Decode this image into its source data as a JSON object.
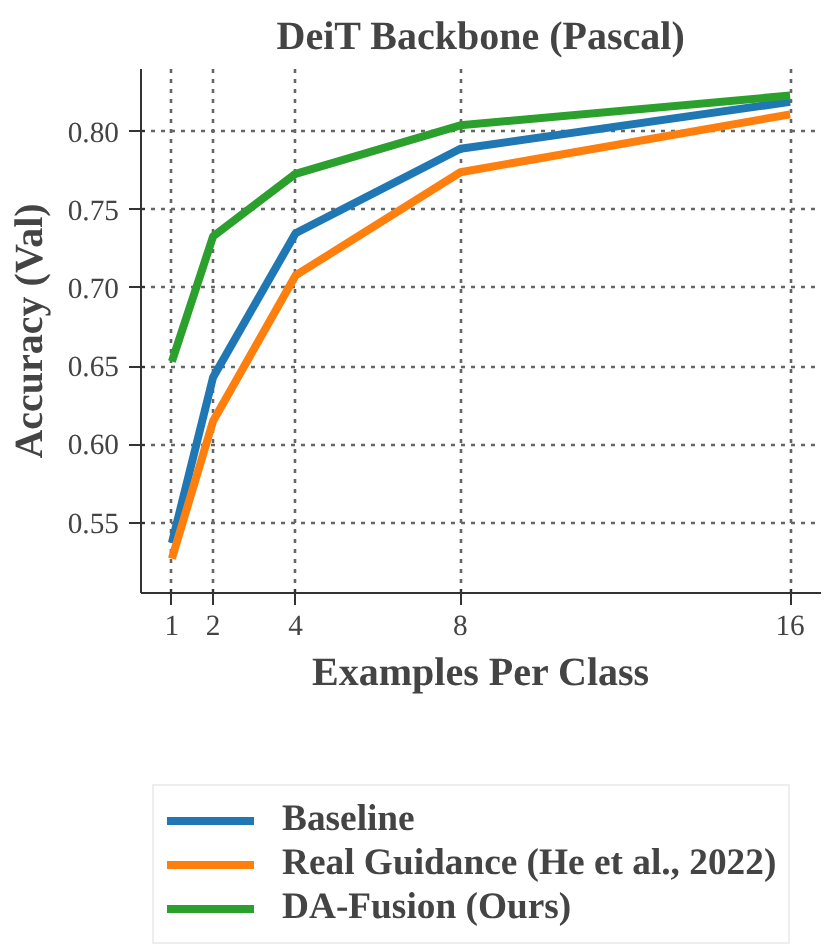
{
  "chart_data": {
    "type": "line",
    "title": "DeiT Backbone (Pascal)",
    "xlabel": "Examples Per Class",
    "ylabel": "Accuracy (Val)",
    "x": [
      1,
      2,
      4,
      8,
      16
    ],
    "series": [
      {
        "name": "Baseline",
        "color": "#1f77b4",
        "values": [
          0.537,
          0.643,
          0.735,
          0.789,
          0.819
        ]
      },
      {
        "name": "Real Guidance (He et al., 2022)",
        "color": "#ff7f0e",
        "values": [
          0.527,
          0.615,
          0.708,
          0.774,
          0.811
        ]
      },
      {
        "name": "DA-Fusion (Ours)",
        "color": "#2ca02c",
        "values": [
          0.653,
          0.733,
          0.773,
          0.804,
          0.823
        ]
      }
    ],
    "xlim": [
      0.25,
      16.75
    ],
    "ylim": [
      0.505,
      0.84
    ],
    "xticks": [
      1,
      2,
      4,
      8,
      16
    ],
    "yticks": [
      0.55,
      {
        "value": 0.6,
        "label": "0.60"
      },
      0.65,
      {
        "value": 0.7,
        "label": "0.70"
      },
      0.75,
      {
        "value": 0.8,
        "label": "0.80"
      }
    ],
    "grid": true,
    "legend": "bottom",
    "line_style": "solid",
    "marker": "none"
  }
}
